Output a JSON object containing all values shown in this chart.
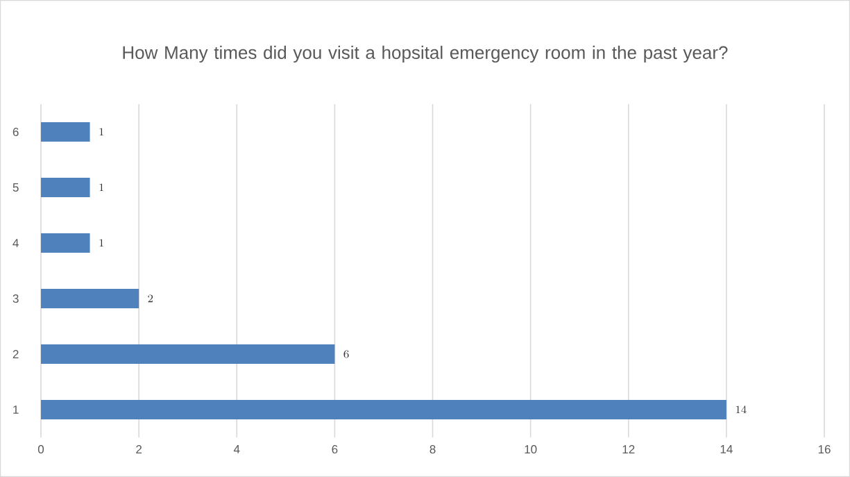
{
  "chart_data": {
    "type": "bar",
    "orientation": "horizontal",
    "title": "How Many times did you visit a hopsital emergency room in the past year?",
    "categories": [
      "6",
      "5",
      "4",
      "3",
      "2",
      "1"
    ],
    "values": [
      1,
      1,
      1,
      2,
      6,
      14
    ],
    "color": "#4f81bd",
    "xlim": [
      0,
      16
    ],
    "xticks": [
      0,
      2,
      4,
      6,
      8,
      10,
      12,
      14,
      16
    ],
    "grid": "x",
    "data_labels": true
  }
}
